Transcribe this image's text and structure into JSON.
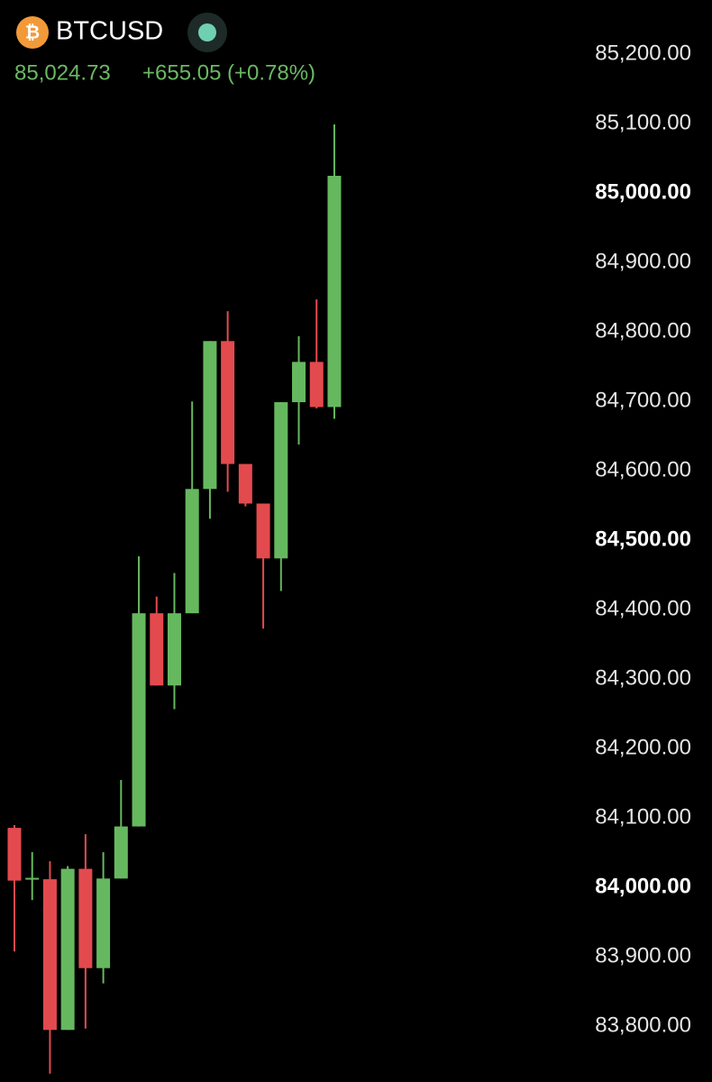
{
  "chart_data": {
    "type": "candlestick",
    "title": "BTCUSD",
    "price": "85,024.73",
    "change": "+655.05",
    "change_pct": "(+0.78%)",
    "categories": [
      null,
      null,
      null,
      null,
      null,
      null,
      null,
      null,
      null,
      null,
      null,
      null,
      null,
      null,
      null,
      null,
      null,
      null,
      null
    ],
    "open": [
      84086,
      84012,
      84012,
      83795,
      84027,
      83884,
      84013,
      84088,
      84395,
      84291,
      84395,
      84574,
      84787,
      84610,
      84553,
      84474,
      84699,
      84757,
      84692
    ],
    "high": [
      84090,
      84051,
      84038,
      84031,
      84077,
      84051,
      84155,
      84477,
      84419,
      84453,
      84700,
      84787,
      84830,
      84610,
      84553,
      84699,
      84794,
      84847,
      85099
    ],
    "low": [
      83908,
      83982,
      83732,
      83795,
      83797,
      83862,
      84013,
      84088,
      84291,
      84257,
      84395,
      84531,
      84570,
      84549,
      84373,
      84427,
      84638,
      84690,
      84675
    ],
    "close": [
      84010,
      84014,
      83795,
      84027,
      83884,
      84013,
      84088,
      84395,
      84291,
      84395,
      84574,
      84787,
      84610,
      84553,
      84474,
      84699,
      84757,
      84692,
      85025
    ],
    "up_color": "#66b85f",
    "down_color": "#e34a4e",
    "ylim": [
      83720,
      85270
    ],
    "yticks": [
      {
        "value": 83800,
        "label": "83,800.00"
      },
      {
        "value": 83900,
        "label": "83,900.00"
      },
      {
        "value": 84000,
        "label": "84,000.00",
        "bold": true
      },
      {
        "value": 84100,
        "label": "84,100.00"
      },
      {
        "value": 84200,
        "label": "84,200.00"
      },
      {
        "value": 84300,
        "label": "84,300.00"
      },
      {
        "value": 84400,
        "label": "84,400.00"
      },
      {
        "value": 84500,
        "label": "84,500.00",
        "bold": true
      },
      {
        "value": 84600,
        "label": "84,600.00"
      },
      {
        "value": 84700,
        "label": "84,700.00"
      },
      {
        "value": 84800,
        "label": "84,800.00"
      },
      {
        "value": 84900,
        "label": "84,900.00"
      },
      {
        "value": 85000,
        "label": "85,000.00",
        "bold": true
      },
      {
        "value": 85100,
        "label": "85,100.00"
      },
      {
        "value": 85200,
        "label": "85,200.00"
      }
    ],
    "grid": false
  }
}
